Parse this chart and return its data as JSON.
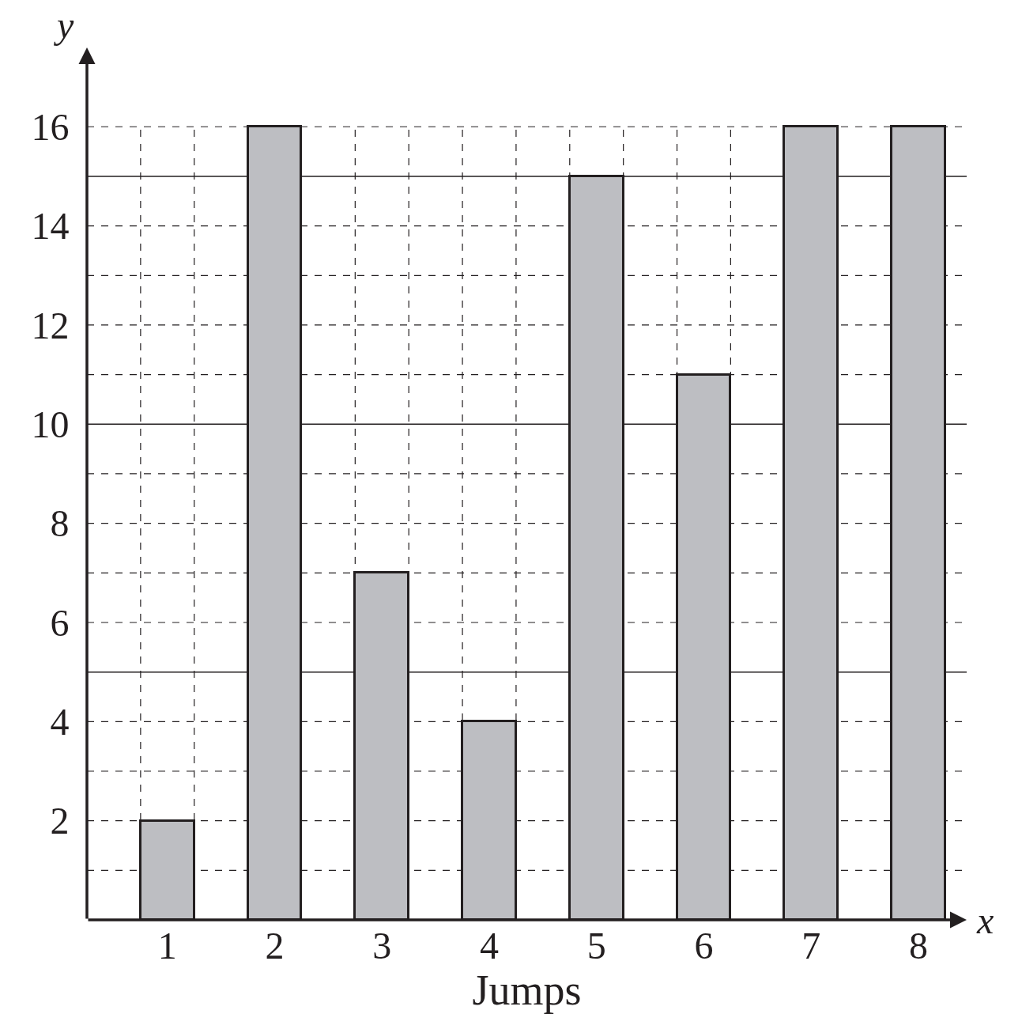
{
  "chart_data": {
    "type": "bar",
    "xlabel": "Jumps",
    "ylabel": "y",
    "annotations": [
      "x"
    ],
    "categories": [
      "1",
      "2",
      "3",
      "4",
      "5",
      "6",
      "7",
      "8"
    ],
    "values": [
      2,
      16,
      7,
      4,
      15,
      11,
      16,
      16
    ],
    "color": "#bdbec2",
    "ylim": [
      0,
      17.6
    ],
    "yticks": [
      {
        "value": 1,
        "label": null
      },
      2,
      {
        "value": 3,
        "label": null
      },
      4,
      6,
      {
        "value": 7,
        "label": null
      },
      8,
      {
        "value": 9,
        "label": null
      },
      10,
      {
        "value": 11,
        "label": null
      },
      12,
      {
        "value": 13,
        "label": null
      },
      14,
      16
    ],
    "grid": true,
    "ref_lines": [
      {
        "axis": "y",
        "value": 5,
        "color": "#231f20",
        "line_style": "solid"
      },
      {
        "axis": "y",
        "value": 10,
        "color": "#231f20",
        "line_style": "solid"
      },
      {
        "axis": "y",
        "value": 15,
        "color": "#231f20",
        "line_style": "solid"
      }
    ]
  }
}
